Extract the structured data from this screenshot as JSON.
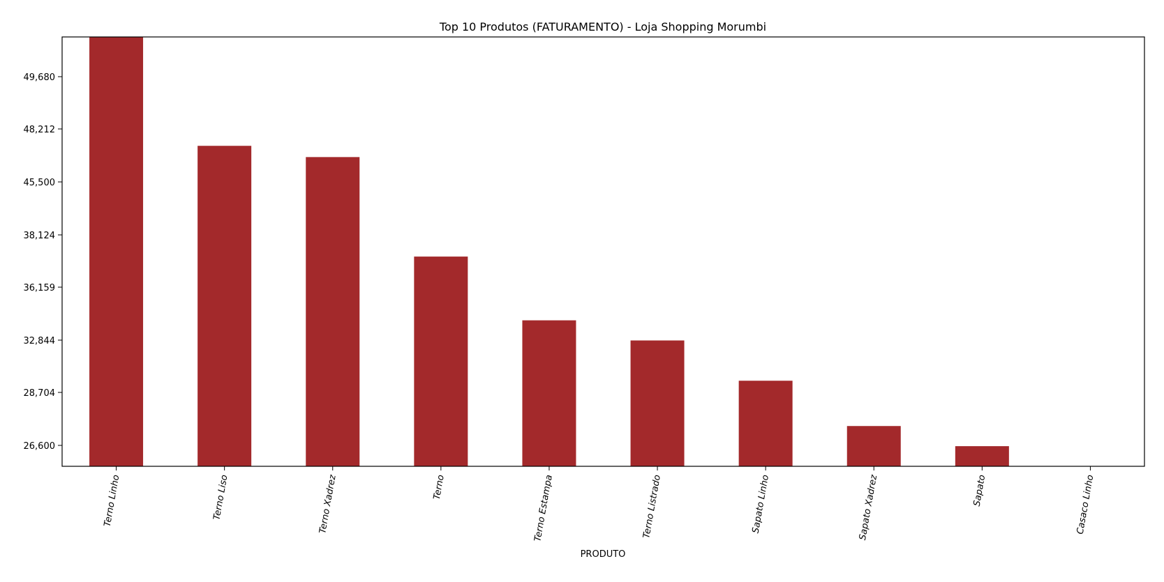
{
  "chart_data": {
    "type": "bar",
    "title": "Top 10 Produtos (FATURAMENTO) - Loja Shopping Morumbi",
    "xlabel": "PRODUTO",
    "ylabel": "",
    "categories": [
      "Terno Linho",
      "Terno Liso",
      "Terno Xadrez",
      "Terno",
      "Terno Estampa",
      "Terno Listrado",
      "Sapato Linho",
      "Sapato Xadrez",
      "Sapato",
      "Casaco Linho"
    ],
    "values": [
      51390,
      44900,
      44230,
      38300,
      34500,
      33300,
      30900,
      28200,
      27000,
      25800
    ],
    "y_ticks": [
      "49,680",
      "48,212",
      "45,500",
      "38,124",
      "36,159",
      "32,844",
      "28,704",
      "26,600"
    ],
    "ylim": [
      25800,
      51390
    ],
    "bar_color": "#a3292b",
    "grid": false,
    "legend": "none"
  }
}
